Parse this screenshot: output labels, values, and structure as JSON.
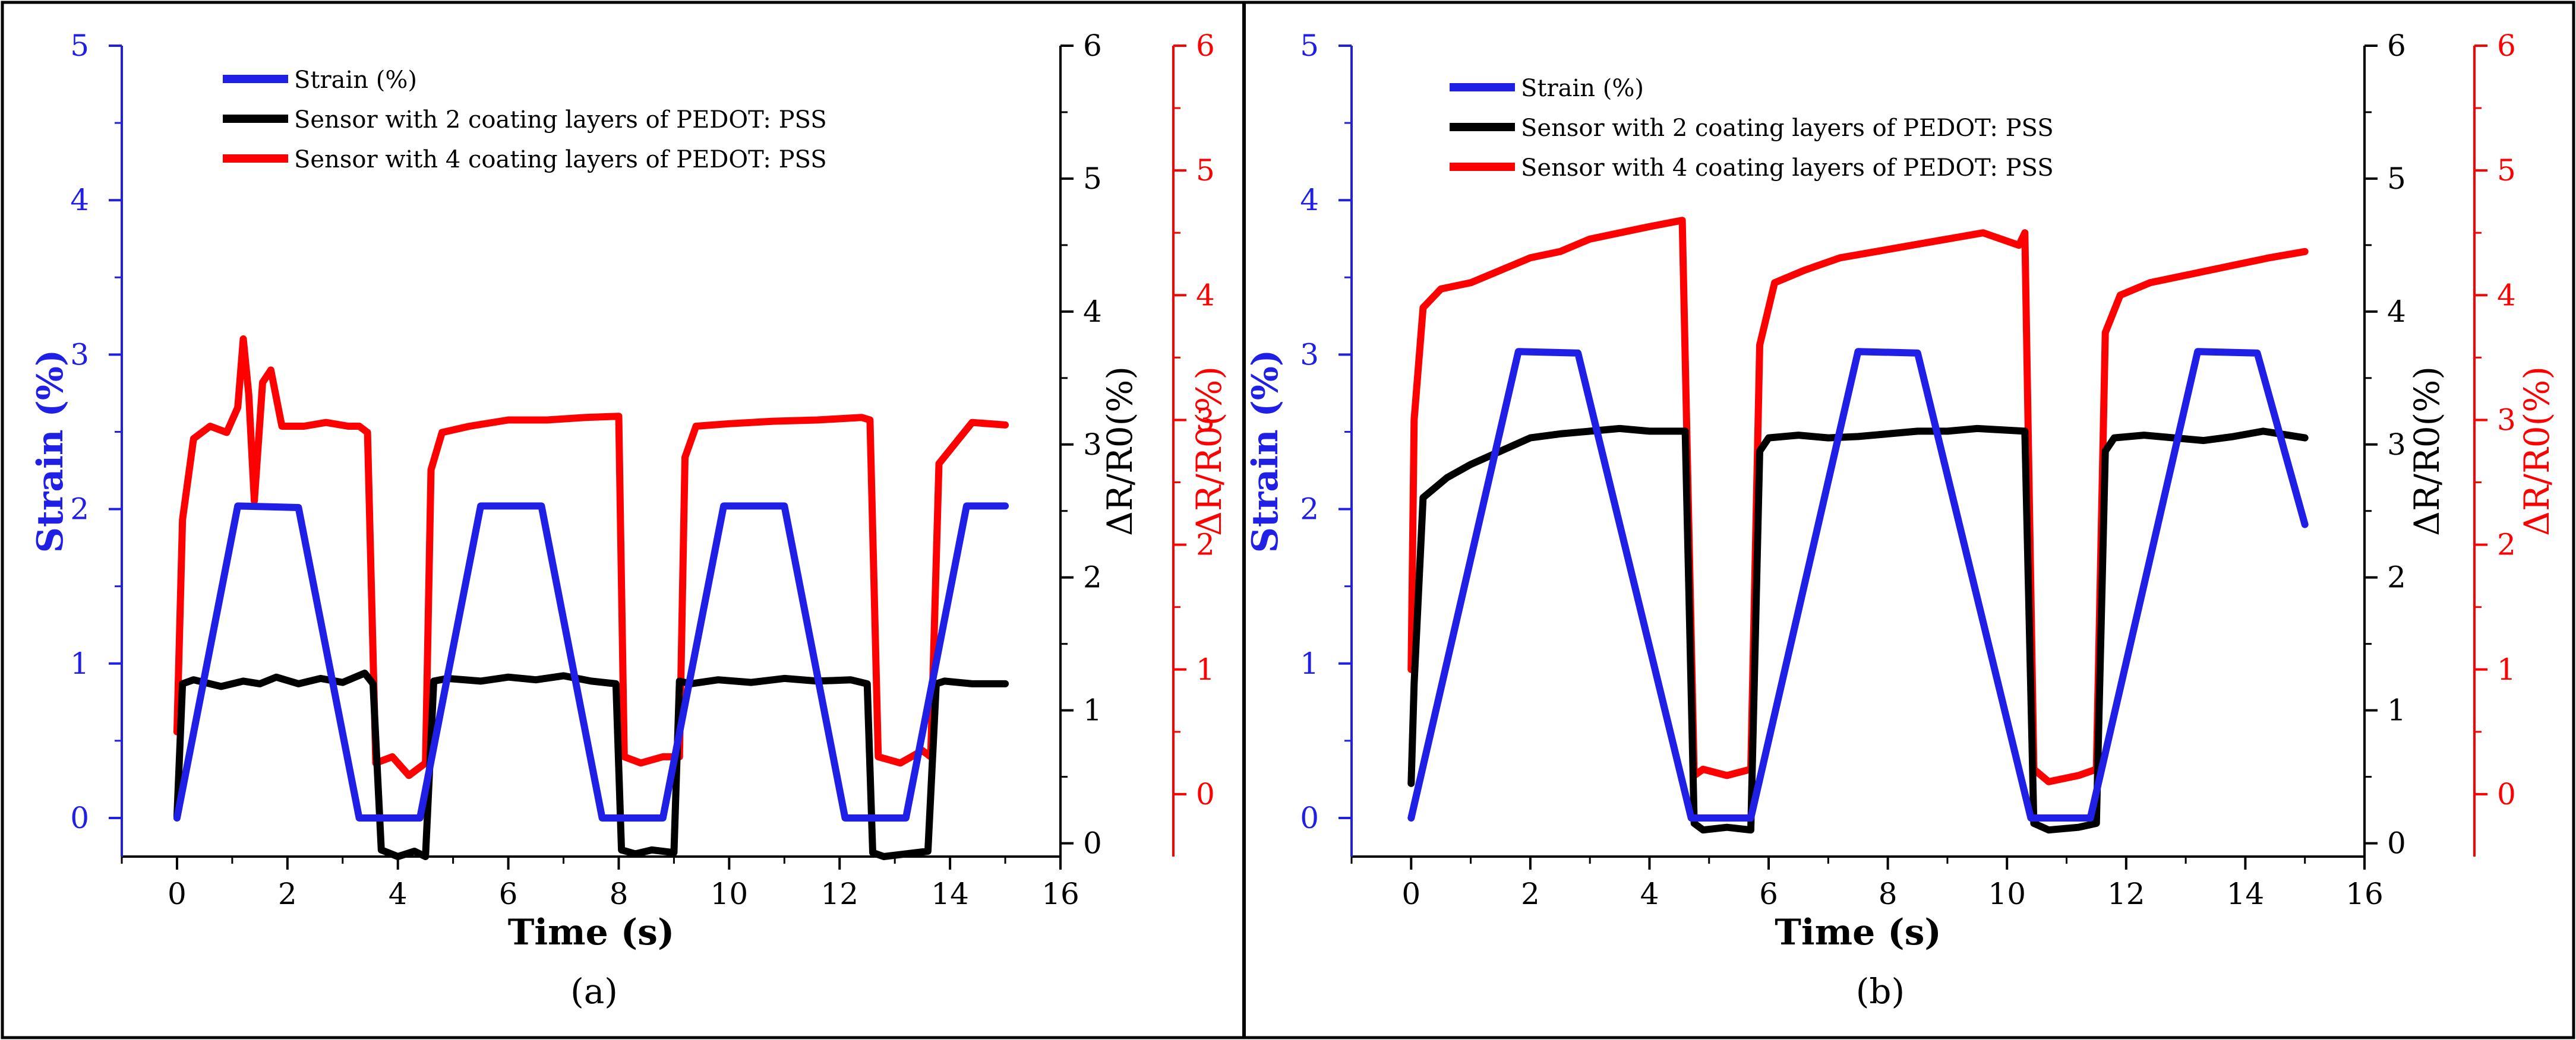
{
  "chart_data": [
    {
      "type": "line",
      "panel_label": "(a)",
      "xlabel": "Time (s)",
      "xlim": [
        -1,
        16
      ],
      "x_ticks": [
        "0",
        "2",
        "4",
        "6",
        "8",
        "10",
        "12",
        "14",
        "16"
      ],
      "y_left": {
        "label": "Strain (%)",
        "lim": [
          -0.25,
          5
        ],
        "ticks": [
          "0",
          "1",
          "2",
          "3",
          "4",
          "5"
        ],
        "color": "#1f1fe6"
      },
      "y_right_black": {
        "label": "ΔR/R0(%)",
        "lim": [
          -0.1,
          6
        ],
        "ticks": [
          "0",
          "1",
          "2",
          "3",
          "4",
          "5",
          "6"
        ],
        "color": "#000000"
      },
      "y_right_red": {
        "label": "ΔR/R0(%)",
        "lim": [
          -0.5,
          6
        ],
        "ticks": [
          "0",
          "1",
          "2",
          "3",
          "4",
          "5",
          "6"
        ],
        "color": "#ff0000"
      },
      "legend": [
        {
          "name": "Strain (%)",
          "color": "#1f1fe6"
        },
        {
          "name": "Sensor with 2 coating layers of PEDOT: PSS",
          "color": "#000000"
        },
        {
          "name": "Sensor with 4 coating layers of PEDOT: PSS",
          "color": "#ff0000"
        }
      ],
      "series": [
        {
          "name": "Strain (%)",
          "axis": "left",
          "color": "#1f1fe6",
          "x": [
            0,
            1.1,
            2.2,
            3.3,
            4.4,
            5.5,
            6.6,
            7.7,
            8.8,
            9.9,
            11.0,
            12.1,
            13.2,
            14.3,
            15.0
          ],
          "y": [
            0,
            2.02,
            2.01,
            0,
            0,
            2.02,
            2.02,
            0,
            0,
            2.02,
            2.02,
            0,
            0,
            2.02,
            2.02
          ]
        },
        {
          "name": "Sensor with 2 coating layers of PEDOT: PSS",
          "axis": "right_black",
          "color": "#000000",
          "x": [
            0,
            0.1,
            0.3,
            0.8,
            1.2,
            1.5,
            1.8,
            2.2,
            2.6,
            3.0,
            3.4,
            3.55,
            3.7,
            4.0,
            4.3,
            4.5,
            4.65,
            4.9,
            5.5,
            6.0,
            6.5,
            7.0,
            7.5,
            7.95,
            8.05,
            8.3,
            8.6,
            9.0,
            9.1,
            9.3,
            9.8,
            10.4,
            11.0,
            11.6,
            12.2,
            12.5,
            12.6,
            12.8,
            13.2,
            13.6,
            13.75,
            13.9,
            14.4,
            15.0
          ],
          "y": [
            0.2,
            1.2,
            1.23,
            1.18,
            1.22,
            1.2,
            1.25,
            1.2,
            1.24,
            1.21,
            1.28,
            1.2,
            -0.05,
            -0.1,
            -0.06,
            -0.1,
            1.22,
            1.24,
            1.22,
            1.25,
            1.23,
            1.26,
            1.22,
            1.2,
            -0.05,
            -0.08,
            -0.05,
            -0.07,
            1.22,
            1.2,
            1.23,
            1.21,
            1.24,
            1.22,
            1.23,
            1.2,
            -0.07,
            -0.1,
            -0.08,
            -0.06,
            1.2,
            1.22,
            1.2,
            1.2
          ]
        },
        {
          "name": "Sensor with 4 coating layers of PEDOT: PSS",
          "axis": "right_red",
          "color": "#ff0000",
          "x": [
            0,
            0.1,
            0.3,
            0.6,
            0.9,
            1.1,
            1.2,
            1.3,
            1.4,
            1.55,
            1.7,
            1.9,
            2.3,
            2.7,
            3.1,
            3.3,
            3.45,
            3.6,
            3.9,
            4.2,
            4.5,
            4.6,
            4.8,
            5.3,
            6.0,
            6.7,
            7.4,
            8.0,
            8.1,
            8.4,
            8.8,
            9.1,
            9.2,
            9.4,
            10.0,
            10.8,
            11.6,
            12.4,
            12.55,
            12.7,
            13.1,
            13.5,
            13.65,
            13.8,
            14.4,
            15.0
          ],
          "y": [
            0.5,
            2.2,
            2.85,
            2.95,
            2.9,
            3.1,
            3.65,
            3.2,
            2.35,
            3.3,
            3.4,
            2.95,
            2.95,
            2.98,
            2.95,
            2.95,
            2.9,
            0.25,
            0.3,
            0.15,
            0.25,
            2.6,
            2.9,
            2.95,
            3.0,
            3.0,
            3.02,
            3.03,
            0.3,
            0.25,
            0.3,
            0.3,
            2.7,
            2.95,
            2.97,
            2.99,
            3.0,
            3.02,
            3.0,
            0.3,
            0.25,
            0.35,
            0.3,
            2.65,
            2.98,
            2.96
          ]
        }
      ]
    },
    {
      "type": "line",
      "panel_label": "(b)",
      "xlabel": "Time (s)",
      "xlim": [
        -1,
        16
      ],
      "x_ticks": [
        "0",
        "2",
        "4",
        "6",
        "8",
        "10",
        "12",
        "14",
        "16"
      ],
      "y_left": {
        "label": "Strain (%)",
        "lim": [
          -0.25,
          5
        ],
        "ticks": [
          "0",
          "1",
          "2",
          "3",
          "4",
          "5"
        ],
        "color": "#1f1fe6"
      },
      "y_right_black": {
        "label": "ΔR/R0(%)",
        "lim": [
          -0.1,
          6
        ],
        "ticks": [
          "0",
          "1",
          "2",
          "3",
          "4",
          "5",
          "6"
        ],
        "color": "#000000"
      },
      "y_right_red": {
        "label": "ΔR/R0(%)",
        "lim": [
          -0.5,
          6
        ],
        "ticks": [
          "0",
          "1",
          "2",
          "3",
          "4",
          "5",
          "6"
        ],
        "color": "#ff0000"
      },
      "legend": [
        {
          "name": "Strain (%)",
          "color": "#1f1fe6"
        },
        {
          "name": "Sensor with 2 coating layers of PEDOT: PSS",
          "color": "#000000"
        },
        {
          "name": "Sensor with 4 coating layers of PEDOT: PSS",
          "color": "#ff0000"
        }
      ],
      "series": [
        {
          "name": "Strain (%)",
          "axis": "left",
          "color": "#1f1fe6",
          "x": [
            0,
            1.8,
            2.8,
            4.7,
            5.7,
            7.5,
            8.5,
            10.4,
            11.4,
            13.2,
            14.2,
            15.0
          ],
          "y": [
            0,
            3.02,
            3.01,
            0,
            0,
            3.02,
            3.01,
            0,
            0,
            3.02,
            3.01,
            1.9
          ]
        },
        {
          "name": "Sensor with 2 coating layers of PEDOT: PSS",
          "axis": "right_black",
          "color": "#000000",
          "x": [
            0,
            0.05,
            0.2,
            0.6,
            1.0,
            1.5,
            2.0,
            2.5,
            3.0,
            3.5,
            4.0,
            4.6,
            4.75,
            4.9,
            5.3,
            5.7,
            5.85,
            6.0,
            6.5,
            7.0,
            7.5,
            8.0,
            8.5,
            9.0,
            9.5,
            10.3,
            10.45,
            10.7,
            11.2,
            11.5,
            11.65,
            11.8,
            12.3,
            12.8,
            13.3,
            13.8,
            14.3,
            15.0
          ],
          "y": [
            0.45,
            1.2,
            2.6,
            2.75,
            2.85,
            2.95,
            3.05,
            3.08,
            3.1,
            3.12,
            3.1,
            3.1,
            0.15,
            0.1,
            0.12,
            0.1,
            2.95,
            3.05,
            3.07,
            3.05,
            3.06,
            3.08,
            3.1,
            3.1,
            3.12,
            3.1,
            0.15,
            0.1,
            0.12,
            0.15,
            2.95,
            3.05,
            3.07,
            3.05,
            3.03,
            3.06,
            3.1,
            3.05
          ]
        },
        {
          "name": "Sensor with 4 coating layers of PEDOT: PSS",
          "axis": "right_red",
          "color": "#ff0000",
          "x": [
            0,
            0.05,
            0.2,
            0.5,
            1.0,
            1.5,
            2.0,
            2.5,
            3.0,
            3.5,
            4.0,
            4.55,
            4.75,
            4.9,
            5.3,
            5.7,
            5.85,
            6.1,
            6.6,
            7.2,
            7.8,
            8.4,
            9.0,
            9.6,
            10.2,
            10.3,
            10.45,
            10.7,
            11.2,
            11.5,
            11.65,
            11.9,
            12.4,
            12.9,
            13.4,
            13.9,
            14.4,
            15.0
          ],
          "y": [
            1.0,
            3.0,
            3.9,
            4.05,
            4.1,
            4.2,
            4.3,
            4.35,
            4.45,
            4.5,
            4.55,
            4.6,
            0.15,
            0.2,
            0.15,
            0.2,
            3.6,
            4.1,
            4.2,
            4.3,
            4.35,
            4.4,
            4.45,
            4.5,
            4.4,
            4.5,
            0.2,
            0.1,
            0.15,
            0.2,
            3.7,
            4.0,
            4.1,
            4.15,
            4.2,
            4.25,
            4.3,
            4.35
          ]
        }
      ]
    }
  ]
}
